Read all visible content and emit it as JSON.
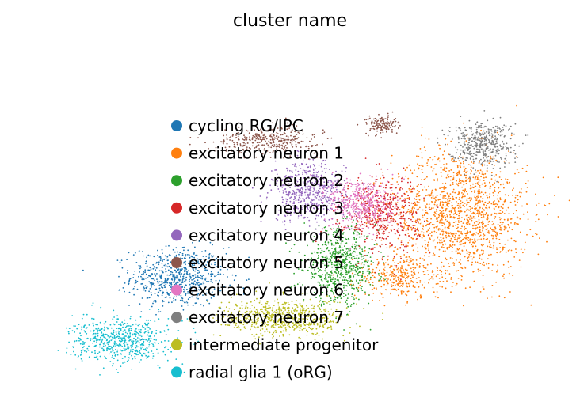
{
  "chart_data": {
    "type": "scatter",
    "title": "cluster name",
    "xlabel": "",
    "ylabel": "",
    "grid": false,
    "axes_visible": false,
    "legend_position": "center-left (overlapping plot)",
    "series": [
      {
        "name": "cycling RG/IPC",
        "color": "#1f77b4",
        "regions": [
          {
            "cx": 0.28,
            "cy": 0.35,
            "rx": 0.09,
            "ry": 0.08,
            "n": 700
          }
        ]
      },
      {
        "name": "excitatory neuron 1",
        "color": "#ff7f0e",
        "regions": [
          {
            "cx": 0.82,
            "cy": 0.52,
            "rx": 0.13,
            "ry": 0.17,
            "n": 1500
          },
          {
            "cx": 0.7,
            "cy": 0.35,
            "rx": 0.08,
            "ry": 0.06,
            "n": 300
          }
        ]
      },
      {
        "name": "excitatory neuron 2",
        "color": "#2ca02c",
        "regions": [
          {
            "cx": 0.59,
            "cy": 0.38,
            "rx": 0.07,
            "ry": 0.1,
            "n": 700
          }
        ]
      },
      {
        "name": "excitatory neuron 3",
        "color": "#d62728",
        "regions": [
          {
            "cx": 0.67,
            "cy": 0.52,
            "rx": 0.07,
            "ry": 0.1,
            "n": 500
          }
        ]
      },
      {
        "name": "excitatory neuron 4",
        "color": "#9467bd",
        "regions": [
          {
            "cx": 0.53,
            "cy": 0.58,
            "rx": 0.07,
            "ry": 0.08,
            "n": 550
          }
        ]
      },
      {
        "name": "excitatory neuron 5",
        "color": "#8c564b",
        "regions": [
          {
            "cx": 0.45,
            "cy": 0.72,
            "rx": 0.1,
            "ry": 0.035,
            "n": 350
          },
          {
            "cx": 0.67,
            "cy": 0.76,
            "rx": 0.03,
            "ry": 0.025,
            "n": 150
          }
        ]
      },
      {
        "name": "excitatory neuron 6",
        "color": "#e377c2",
        "regions": [
          {
            "cx": 0.63,
            "cy": 0.55,
            "rx": 0.06,
            "ry": 0.07,
            "n": 450
          }
        ]
      },
      {
        "name": "excitatory neuron 7",
        "color": "#7f7f7f",
        "regions": [
          {
            "cx": 0.86,
            "cy": 0.71,
            "rx": 0.06,
            "ry": 0.06,
            "n": 450
          }
        ]
      },
      {
        "name": "intermediate progenitor",
        "color": "#bcbd22",
        "regions": [
          {
            "cx": 0.48,
            "cy": 0.24,
            "rx": 0.12,
            "ry": 0.05,
            "n": 650
          }
        ]
      },
      {
        "name": "radial glia 1 (oRG)",
        "color": "#17becf",
        "regions": [
          {
            "cx": 0.17,
            "cy": 0.18,
            "rx": 0.09,
            "ry": 0.06,
            "n": 600
          }
        ]
      }
    ]
  }
}
